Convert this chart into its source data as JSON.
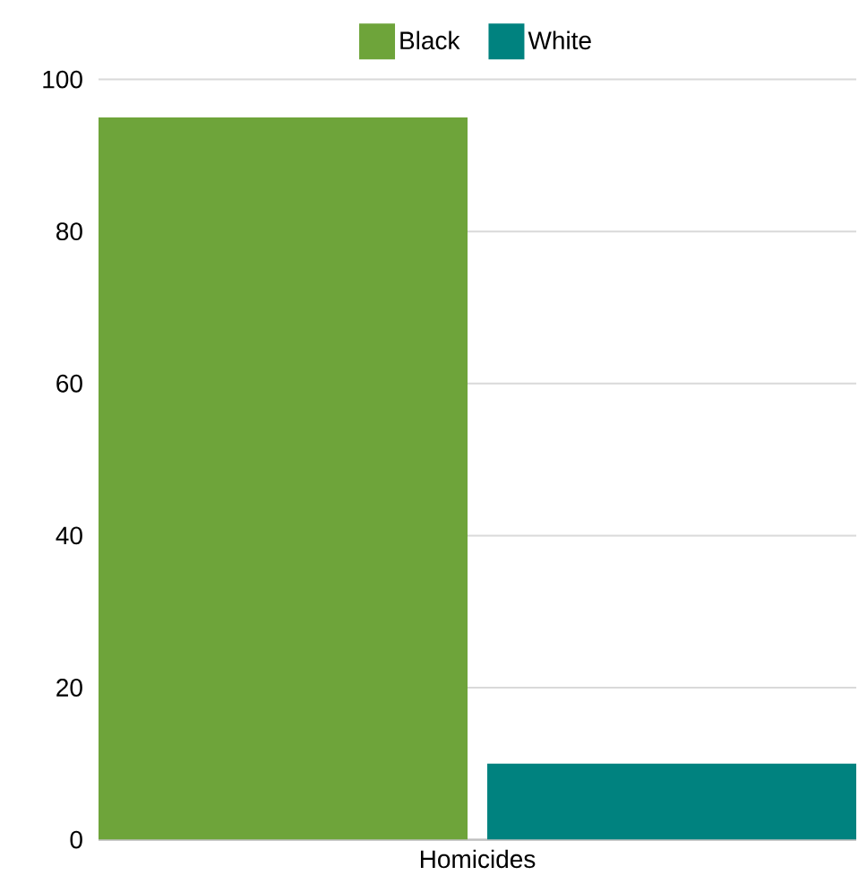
{
  "chart_data": {
    "type": "bar",
    "categories": [
      "Homicides"
    ],
    "series": [
      {
        "name": "Black",
        "color": "#6ea43a",
        "values": [
          95
        ]
      },
      {
        "name": "White",
        "color": "#00827f",
        "values": [
          10
        ]
      }
    ],
    "ylim": [
      0,
      100
    ],
    "yticks": [
      0,
      20,
      40,
      60,
      80,
      100
    ],
    "grid": "y",
    "legend": "top"
  }
}
